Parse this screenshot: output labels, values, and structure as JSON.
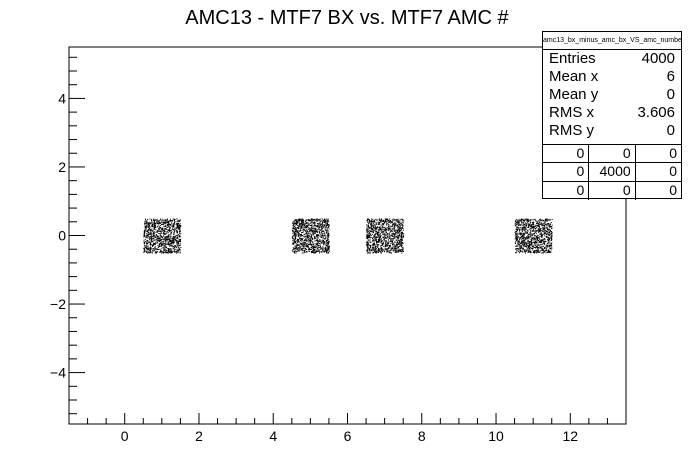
{
  "chart_data": {
    "type": "scatter",
    "title": "AMC13 - MTF7 BX vs. MTF7 AMC #",
    "xlabel": "",
    "ylabel": "",
    "xlim": [
      -1.5,
      13.5
    ],
    "ylim": [
      -5.5,
      5.5
    ],
    "x_ticks": [
      0,
      2,
      4,
      6,
      8,
      10,
      12
    ],
    "y_ticks": [
      -4,
      -2,
      0,
      2,
      4
    ],
    "clusters": [
      {
        "x_range": [
          0.5,
          1.5
        ],
        "y_range": [
          -0.5,
          0.5
        ],
        "entries": 1000
      },
      {
        "x_range": [
          4.5,
          5.5
        ],
        "y_range": [
          -0.5,
          0.5
        ],
        "entries": 1000
      },
      {
        "x_range": [
          6.5,
          7.5
        ],
        "y_range": [
          -0.5,
          0.5
        ],
        "entries": 1000
      },
      {
        "x_range": [
          10.5,
          11.5
        ],
        "y_range": [
          -0.5,
          0.5
        ],
        "entries": 1000
      }
    ],
    "stats": {
      "name": "amc13_bx_minus_amc_bx_VS_amc_number",
      "rows": [
        {
          "label": "Entries",
          "value": "4000"
        },
        {
          "label": "Mean x",
          "value": "6"
        },
        {
          "label": "Mean y",
          "value": "0"
        },
        {
          "label": "RMS x",
          "value": "3.606"
        },
        {
          "label": "RMS y",
          "value": "0"
        }
      ],
      "cells": [
        [
          "0",
          "0",
          "0"
        ],
        [
          "0",
          "4000",
          "0"
        ],
        [
          "0",
          "0",
          "0"
        ]
      ]
    }
  }
}
